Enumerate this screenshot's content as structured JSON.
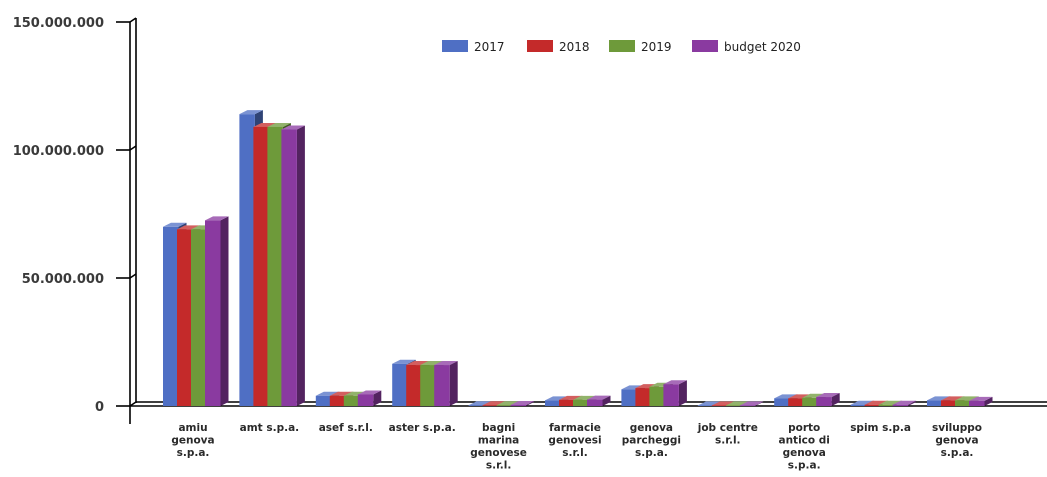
{
  "chart_data": {
    "type": "bar",
    "title": "",
    "xlabel": "",
    "ylabel": "",
    "ylim": [
      0,
      150000000
    ],
    "yticks": [
      0,
      50000000,
      100000000,
      150000000
    ],
    "ytick_labels": [
      "0",
      "50.000.000",
      "100.000.000",
      "150.000.000"
    ],
    "categories": [
      [
        "amiu",
        "genova",
        "s.p.a."
      ],
      [
        "amt s.p.a."
      ],
      [
        "asef s.r.l."
      ],
      [
        "aster s.p.a."
      ],
      [
        "bagni",
        "marina",
        "genovese",
        "s.r.l."
      ],
      [
        "farmacie",
        "genovesi",
        "s.r.l."
      ],
      [
        "genova",
        "parcheggi",
        "s.p.a."
      ],
      [
        "job centre",
        "s.r.l."
      ],
      [
        "porto",
        "antico di",
        "genova",
        "s.p.a."
      ],
      [
        "spim s.p.a"
      ],
      [
        "sviluppo",
        "genova",
        "s.p.a."
      ]
    ],
    "series": [
      {
        "name": "2017",
        "color": "#4f6fc4",
        "values": [
          70000000,
          114000000,
          4000000,
          16500000,
          300000,
          2200000,
          6500000,
          200000,
          3000000,
          500000,
          2200000
        ]
      },
      {
        "name": "2018",
        "color": "#c42a2a",
        "values": [
          69000000,
          109000000,
          4000000,
          16000000,
          300000,
          2400000,
          7000000,
          200000,
          3000000,
          500000,
          2200000
        ]
      },
      {
        "name": "2019",
        "color": "#6e9a3a",
        "values": [
          69000000,
          109000000,
          4000000,
          16000000,
          300000,
          2400000,
          7500000,
          200000,
          3200000,
          500000,
          2200000
        ]
      },
      {
        "name": "budget 2020",
        "color": "#8a3aa0",
        "values": [
          72500000,
          108000000,
          4500000,
          16000000,
          400000,
          2500000,
          8500000,
          200000,
          3500000,
          500000,
          2000000
        ]
      }
    ],
    "grid": false,
    "legend": "top-right",
    "style": "3d"
  }
}
